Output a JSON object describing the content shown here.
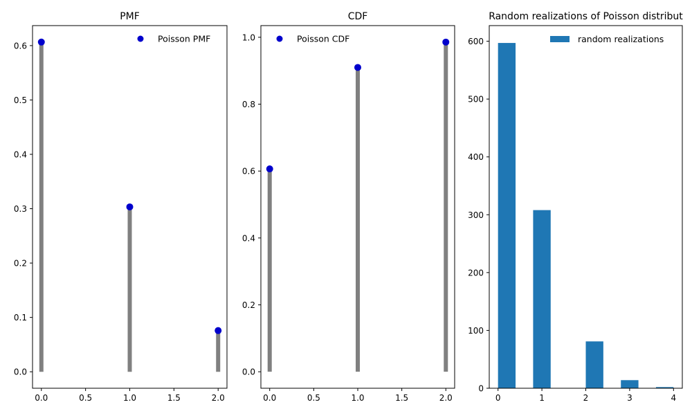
{
  "chart_data": [
    {
      "type": "stem",
      "title": "PMF",
      "x": [
        0,
        1,
        2
      ],
      "values": [
        0.6065,
        0.3033,
        0.0758
      ],
      "xlim": [
        -0.1,
        2.1
      ],
      "ylim": [
        -0.0303,
        0.6368
      ],
      "xticks": [
        0,
        0.5,
        1,
        1.5,
        2
      ],
      "xtick_labels": [
        "0.0",
        "0.5",
        "1.0",
        "1.5",
        "2.0"
      ],
      "yticks": [
        0,
        0.1,
        0.2,
        0.3,
        0.4,
        0.5,
        0.6
      ],
      "ytick_labels": [
        "0.0",
        "0.1",
        "0.2",
        "0.3",
        "0.4",
        "0.5",
        "0.6"
      ],
      "legend": "Poisson PMF",
      "legend_position": "upper right",
      "marker_color": "#0000cc",
      "stem_color": "#808080"
    },
    {
      "type": "stem",
      "title": "CDF",
      "x": [
        0,
        1,
        2
      ],
      "values": [
        0.6065,
        0.9098,
        0.9856
      ],
      "xlim": [
        -0.1,
        2.1
      ],
      "ylim": [
        -0.0493,
        1.0349
      ],
      "xticks": [
        0,
        0.5,
        1,
        1.5,
        2
      ],
      "xtick_labels": [
        "0.0",
        "0.5",
        "1.0",
        "1.5",
        "2.0"
      ],
      "yticks": [
        0,
        0.2,
        0.4,
        0.6,
        0.8,
        1.0
      ],
      "ytick_labels": [
        "0.0",
        "0.2",
        "0.4",
        "0.6",
        "0.8",
        "1.0"
      ],
      "legend": "Poisson CDF",
      "legend_position": "upper left",
      "marker_color": "#0000cc",
      "stem_color": "#808080"
    },
    {
      "type": "bar",
      "title": "Random realizations of Poisson distribut",
      "bins": [
        {
          "start": 0.0,
          "end": 0.4,
          "value": 597
        },
        {
          "start": 0.8,
          "end": 1.2,
          "value": 308
        },
        {
          "start": 2.0,
          "end": 2.4,
          "value": 81
        },
        {
          "start": 2.8,
          "end": 3.2,
          "value": 14
        },
        {
          "start": 3.6,
          "end": 4.0,
          "value": 2
        }
      ],
      "xlim": [
        -0.2,
        4.2
      ],
      "ylim": [
        0,
        627
      ],
      "xticks": [
        0,
        1,
        2,
        3,
        4
      ],
      "xtick_labels": [
        "0",
        "1",
        "2",
        "3",
        "4"
      ],
      "yticks": [
        0,
        100,
        200,
        300,
        400,
        500,
        600
      ],
      "ytick_labels": [
        "0",
        "100",
        "200",
        "300",
        "400",
        "500",
        "600"
      ],
      "legend": "random realizations",
      "legend_position": "upper right",
      "bar_color": "#1f77b4"
    }
  ]
}
